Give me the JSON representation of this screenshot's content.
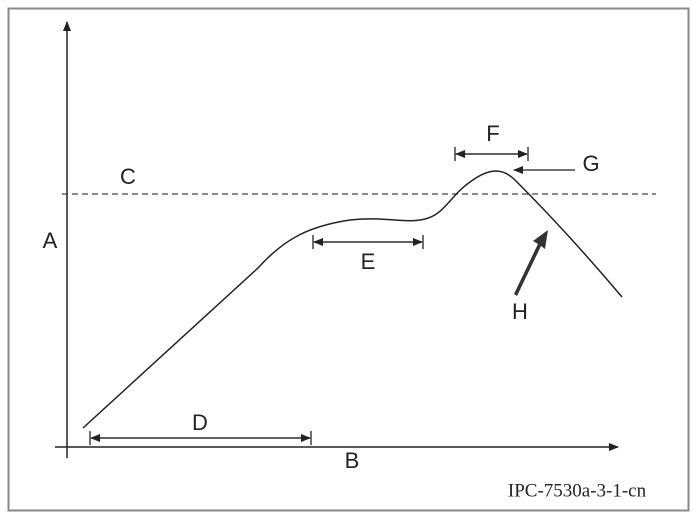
{
  "labels": {
    "a": "A",
    "b": "B",
    "c": "C",
    "d": "D",
    "e": "E",
    "f": "F",
    "g": "G",
    "h": "H"
  },
  "figure_id": "IPC-7530a-3-1-cn"
}
